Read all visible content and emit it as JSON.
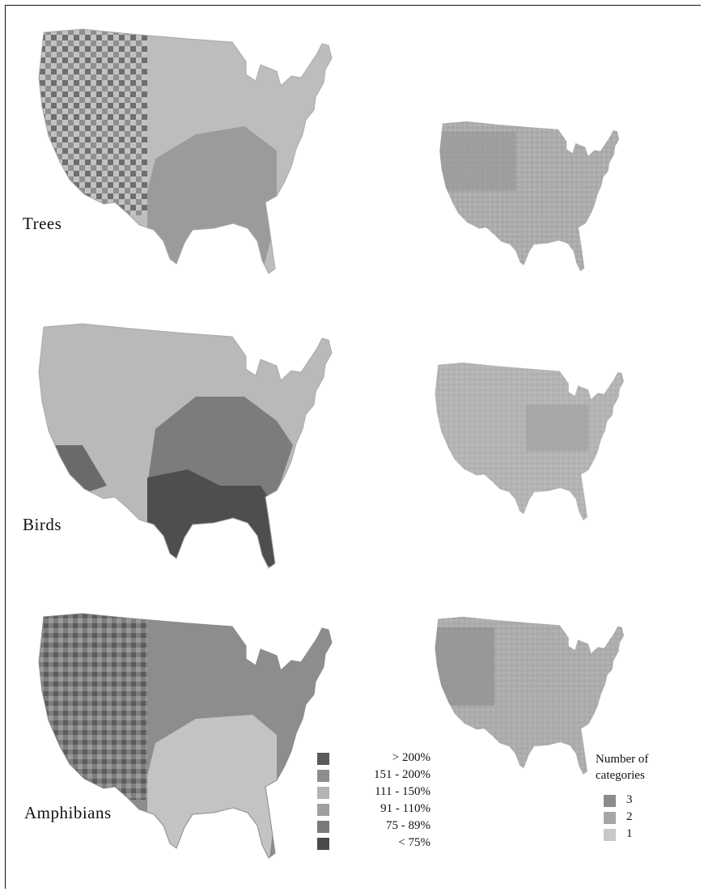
{
  "colors": {
    "very_dark": "#4a4a4a",
    "dark": "#7a7a7a",
    "mid": "#9a9a9a",
    "light": "#bdbdbd",
    "lighter": "#cfcfcf",
    "cat3": "#8c8c8c",
    "cat2": "#a6a6a6",
    "cat1": "#c8c8c8"
  },
  "panels": {
    "trees": {
      "label": "Trees"
    },
    "birds": {
      "label": "Birds"
    },
    "amphibians": {
      "label": "Amphibians"
    }
  },
  "change_legend": {
    "items": [
      {
        "label": "> 200%",
        "color": "#5a5a5a"
      },
      {
        "label": "151 - 200%",
        "color": "#8e8e8e"
      },
      {
        "label": "111 - 150%",
        "color": "#b3b3b3"
      },
      {
        "label": "91 - 110%",
        "color": "#a0a0a0"
      },
      {
        "label": "75 - 89%",
        "color": "#7a7a7a"
      },
      {
        "label": "< 75%",
        "color": "#4a4a4a"
      }
    ]
  },
  "category_legend": {
    "title_line1": "Number of",
    "title_line2": "categories",
    "items": [
      {
        "label": "3",
        "color": "#8c8c8c"
      },
      {
        "label": "2",
        "color": "#a6a6a6"
      },
      {
        "label": "1",
        "color": "#c8c8c8"
      }
    ]
  }
}
